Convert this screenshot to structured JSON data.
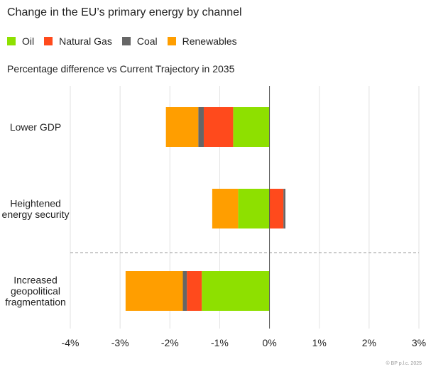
{
  "chart_data": {
    "type": "bar",
    "orientation": "horizontal",
    "stacked": true,
    "title": "Change in the EU’s primary energy by channel",
    "subtitle": "Percentage difference vs Current Trajectory in 2035",
    "categories": [
      [
        "Lower GDP"
      ],
      [
        "Heightened",
        "energy security"
      ],
      [
        "Increased",
        "geopolitical",
        "fragmentation"
      ]
    ],
    "series": [
      {
        "name": "Oil",
        "color": "#8ee000",
        "values": [
          -0.73,
          -0.63,
          -1.36
        ]
      },
      {
        "name": "Natural Gas",
        "color": "#ff4a1c",
        "values": [
          -0.59,
          0.28,
          -0.3
        ]
      },
      {
        "name": "Coal",
        "color": "#666666",
        "values": [
          -0.11,
          0.04,
          -0.08
        ]
      },
      {
        "name": "Renewables",
        "color": "#ff9e00",
        "values": [
          -0.65,
          -0.52,
          -1.15
        ]
      }
    ],
    "xlim": [
      -4,
      3
    ],
    "xticks": [
      -4,
      -3,
      -2,
      -1,
      0,
      1,
      2,
      3
    ],
    "xtick_labels": [
      "-4%",
      "-3%",
      "-2%",
      "-1%",
      "0%",
      "1%",
      "2%",
      "3%"
    ],
    "grid": true,
    "legend_position": "top-left",
    "separator_after_category": 1
  },
  "footer": "© BP p.l.c. 2025"
}
